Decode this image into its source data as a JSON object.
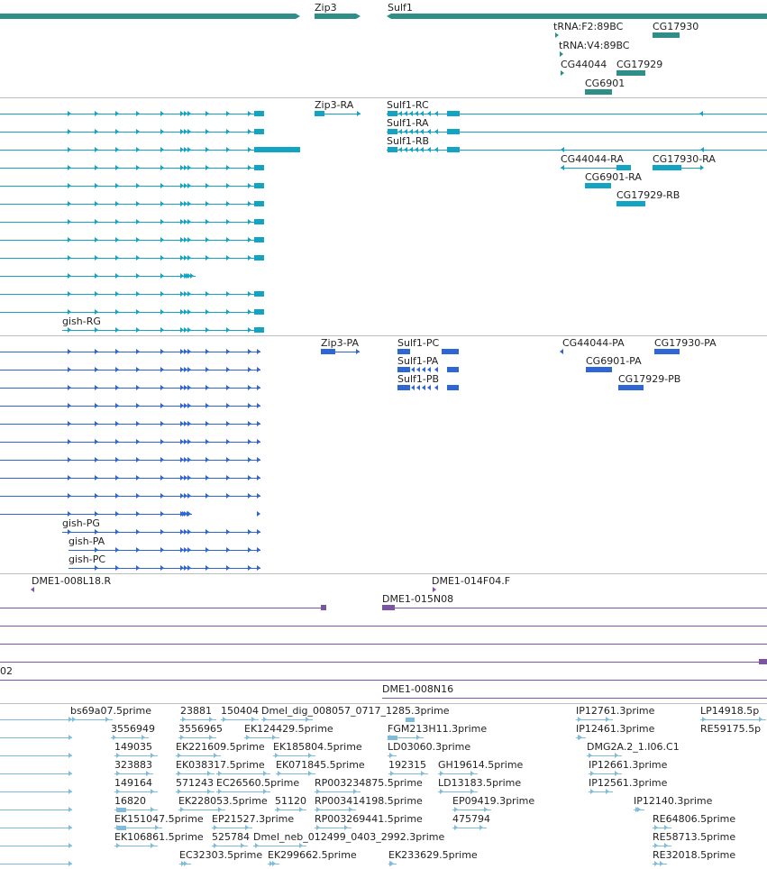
{
  "colors": {
    "gene": "#2f8f88",
    "rna": "#13a4c4",
    "protein": "#2f66d6",
    "clone": "#7b55a3",
    "est": "#7fbcdc",
    "separator": "#bdbdbd",
    "text": "#222222"
  },
  "tracks": {
    "gene": {
      "labels": {
        "zip3": "Zip3",
        "sulf1": "Sulf1",
        "trna_f2": "tRNA:F2:89BC",
        "trna_v4": "tRNA:V4:89BC",
        "cg17930": "CG17930",
        "cg44044": "CG44044",
        "cg17929": "CG17929",
        "cg6901": "CG6901"
      }
    },
    "rna": {
      "labels": {
        "zip3_ra": "Zip3-RA",
        "sulf1_rc": "Sulf1-RC",
        "sulf1_ra": "Sulf1-RA",
        "sulf1_rb": "Sulf1-RB",
        "cg44044_ra": "CG44044-RA",
        "cg17930_ra": "CG17930-RA",
        "cg6901_ra": "CG6901-RA",
        "cg17929_rb": "CG17929-RB",
        "gish_rg": "gish-RG"
      }
    },
    "protein": {
      "labels": {
        "zip3_pa": "Zip3-PA",
        "sulf1_pc": "Sulf1-PC",
        "sulf1_pa": "Sulf1-PA",
        "sulf1_pb": "Sulf1-PB",
        "cg44044_pa": "CG44044-PA",
        "cg17930_pa": "CG17930-PA",
        "cg6901_pa": "CG6901-PA",
        "cg17929_pb": "CG17929-PB",
        "gish_pg": "gish-PG",
        "gish_pa": "gish-PA",
        "gish_pc": "gish-PC"
      }
    },
    "clone": {
      "labels": {
        "c008l18": "DME1-008L18.R",
        "c014f04": "DME1-014F04.F",
        "c015n08": "DME1-015N08",
        "c_02": "02",
        "c008n16": "DME1-008N16"
      }
    },
    "est": {
      "labels": {
        "bs69a07": "bs69a07.5prime",
        "e23881": "23881",
        "e150404": "150404",
        "dmel_dig": "Dmel_dig_008057_0717_1285.3prime",
        "ip12761": "IP12761.3prime",
        "lp14918": "LP14918.5p",
        "e3556949": "3556949",
        "e3556965": "3556965",
        "ek124429": "EK124429.5prime",
        "fgm213h11": "FGM213H11.3prime",
        "ip12461": "IP12461.3prime",
        "re59175": "RE59175.5p",
        "e149035": "149035",
        "ek221609": "EK221609.5prime",
        "ek185804": "EK185804.5prime",
        "ld03060": "LD03060.3prime",
        "dmg2a2": "DMG2A.2_1.I06.C1",
        "e323883": "323883",
        "ek038317": "EK038317.5prime",
        "ek071845": "EK071845.5prime",
        "e192315": "192315",
        "gh19614": "GH19614.5prime",
        "ip12661": "IP12661.3prime",
        "e149164": "149164",
        "e571243": "571243",
        "ec26560": "EC26560.5prime",
        "rp003234875": "RP003234875.5prime",
        "ld13183": "LD13183.5prime",
        "ip12561": "IP12561.3prime",
        "e16820": "16820",
        "ek228053": "EK228053.5prime",
        "e51120": "51120",
        "rp003414198": "RP003414198.5prime",
        "ep09419": "EP09419.3prime",
        "ip12140": "IP12140.3prime",
        "ek151047": "EK151047.5prime",
        "ep21527": "EP21527.3prime",
        "rp003269441": "RP003269441.5prime",
        "e475794": "475794",
        "re64806": "RE64806.5prime",
        "ek106861": "EK106861.5prime",
        "e525784": "525784",
        "dmel_neb": "Dmel_neb_012499_0403_2992.3prime",
        "re58713": "RE58713.5prime",
        "ec32303": "EC32303.5prime",
        "ek299662": "EK299662.5prime",
        "ek233629": "EK233629.5prime",
        "re32018": "RE32018.5prime"
      }
    }
  }
}
